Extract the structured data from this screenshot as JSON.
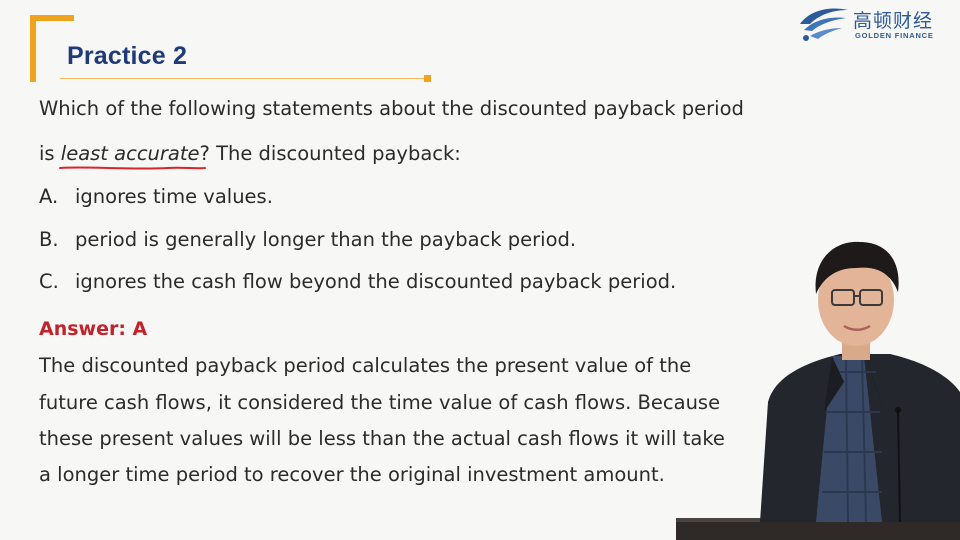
{
  "header": {
    "title": "Practice 2",
    "accent_color": "#f0a31c",
    "title_color": "#1f3a78"
  },
  "logo": {
    "cn": "高顿财经",
    "en": "GOLDEN FINANCE",
    "icon": "golden-finance-logo-icon"
  },
  "question": {
    "line1": "Which of the following statements about the discounted payback period",
    "line2_prefix": "is ",
    "line2_emphasis": "least accurate",
    "line2_suffix": "? The discounted payback:"
  },
  "options": [
    {
      "letter": "A.",
      "text": "ignores time values."
    },
    {
      "letter": "B.",
      "text": "period is generally longer than the payback period."
    },
    {
      "letter": "C.",
      "text": "ignores the cash flow beyond the discounted payback period."
    }
  ],
  "answer": {
    "label": "Answer: A",
    "color": "#c2222b",
    "lines": [
      "The discounted payback period calculates the present value of the",
      "future cash flows, it considered the time value of cash flows. Because",
      "these present values will be less than the actual cash flows it will take",
      "a longer time period to recover the original investment amount."
    ]
  }
}
